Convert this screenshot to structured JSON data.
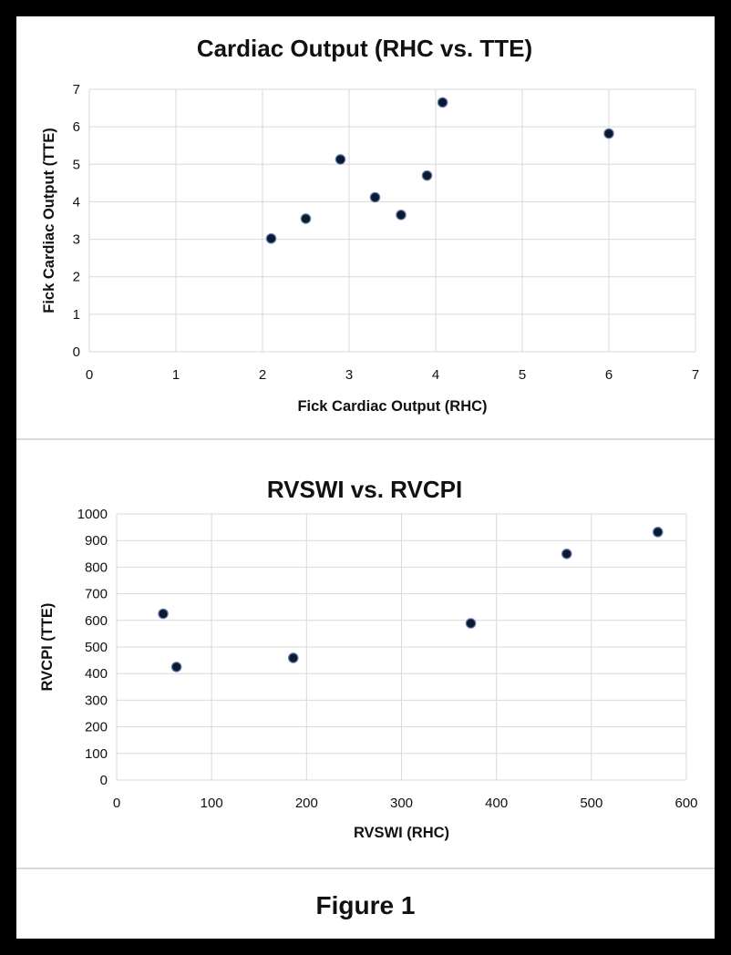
{
  "figure_caption": "Figure 1",
  "chart_data": [
    {
      "type": "scatter",
      "title": "Cardiac Output (RHC vs. TTE)",
      "xlabel": "Fick Cardiac Output (RHC)",
      "ylabel": "Fick Cardiac Output (TTE)",
      "xlim": [
        0,
        7
      ],
      "ylim": [
        0,
        7
      ],
      "xticks": [
        0,
        1,
        2,
        3,
        4,
        5,
        6,
        7
      ],
      "yticks": [
        0,
        1,
        2,
        3,
        4,
        5,
        6,
        7
      ],
      "grid": true,
      "marker_color": "#0b1a33",
      "marker_edge": "#6a7fb0",
      "points": [
        {
          "x": 2.1,
          "y": 3.02
        },
        {
          "x": 2.5,
          "y": 3.55
        },
        {
          "x": 2.9,
          "y": 5.13
        },
        {
          "x": 3.3,
          "y": 4.12
        },
        {
          "x": 3.6,
          "y": 3.65
        },
        {
          "x": 3.9,
          "y": 4.7
        },
        {
          "x": 4.08,
          "y": 6.65
        },
        {
          "x": 6.0,
          "y": 5.82
        }
      ]
    },
    {
      "type": "scatter",
      "title": "RVSWI vs. RVCPI",
      "xlabel": "RVSWI (RHC)",
      "ylabel": "RVCPI (TTE)",
      "xlim": [
        0,
        600
      ],
      "ylim": [
        0,
        1000
      ],
      "xticks": [
        0,
        100,
        200,
        300,
        400,
        500,
        600
      ],
      "yticks": [
        0,
        100,
        200,
        300,
        400,
        500,
        600,
        700,
        800,
        900,
        1000
      ],
      "grid": true,
      "marker_color": "#0b1a33",
      "marker_edge": "#6a7fb0",
      "points": [
        {
          "x": 49,
          "y": 625
        },
        {
          "x": 63,
          "y": 425
        },
        {
          "x": 186,
          "y": 459
        },
        {
          "x": 373,
          "y": 589
        },
        {
          "x": 474,
          "y": 850
        },
        {
          "x": 570,
          "y": 932
        }
      ]
    }
  ]
}
